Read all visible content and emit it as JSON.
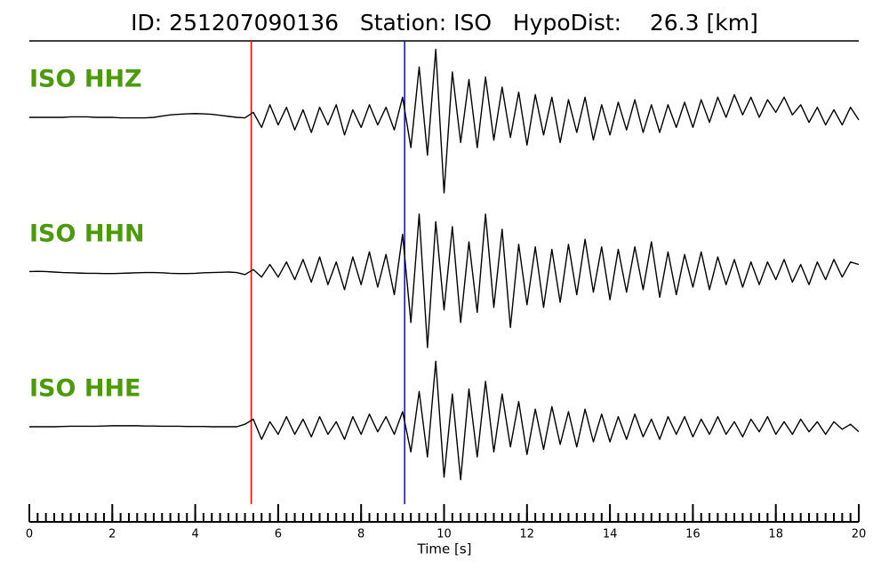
{
  "chart_data": {
    "type": "seismogram",
    "title": "ID: 251207090136   Station: ISO   HypoDist:    26.3 [km]",
    "xlabel": "Time [s]",
    "xlim": [
      0,
      20
    ],
    "xticks": [
      0,
      2,
      4,
      6,
      8,
      10,
      12,
      14,
      16,
      18,
      20
    ],
    "xminor": 0.2,
    "ylim": [
      -3,
      3
    ],
    "label_color": "#4a9a0a",
    "picks": [
      {
        "x": 5.35,
        "color": "#ff0000"
      },
      {
        "x": 9.05,
        "color": "#0000ff"
      }
    ],
    "x": [
      0,
      0.2,
      0.4,
      0.6,
      0.8,
      1,
      1.2,
      1.4,
      1.6,
      1.8,
      2,
      2.2,
      2.4,
      2.6,
      2.8,
      3,
      3.2,
      3.4,
      3.6,
      3.8,
      4,
      4.2,
      4.4,
      4.6,
      4.8,
      5,
      5.2,
      5.4,
      5.6,
      5.8,
      6,
      6.2,
      6.4,
      6.6,
      6.8,
      7,
      7.2,
      7.4,
      7.6,
      7.8,
      8,
      8.2,
      8.4,
      8.6,
      8.8,
      9,
      9.2,
      9.4,
      9.6,
      9.8,
      10,
      10.2,
      10.4,
      10.6,
      10.8,
      11,
      11.2,
      11.4,
      11.6,
      11.8,
      12,
      12.2,
      12.4,
      12.6,
      12.8,
      13,
      13.2,
      13.4,
      13.6,
      13.8,
      14,
      14.2,
      14.4,
      14.6,
      14.8,
      15,
      15.2,
      15.4,
      15.6,
      15.8,
      16,
      16.2,
      16.4,
      16.6,
      16.8,
      17,
      17.2,
      17.4,
      17.6,
      17.8,
      18,
      18.2,
      18.4,
      18.6,
      18.8,
      19,
      19.2,
      19.4,
      19.6,
      19.8,
      20
    ],
    "series": [
      {
        "name": "ISO HHZ",
        "color": "#000000",
        "values": [
          0,
          0,
          0,
          0,
          0,
          0.02,
          0.02,
          0.02,
          0,
          0,
          0,
          -0.02,
          -0.02,
          -0.02,
          -0.02,
          0,
          0.05,
          0.1,
          0.12,
          0.14,
          0.15,
          0.14,
          0.12,
          0.08,
          0.04,
          0,
          -0.02,
          0.2,
          -0.4,
          0.5,
          -0.3,
          0.4,
          -0.5,
          0.3,
          -0.6,
          0.4,
          -0.3,
          0.5,
          -0.7,
          0.3,
          -0.4,
          0.5,
          -0.3,
          0.4,
          -0.5,
          0.8,
          -1.2,
          2.0,
          -1.5,
          2.7,
          -3.0,
          1.8,
          -1.0,
          1.5,
          -1.2,
          1.6,
          -0.9,
          1.2,
          -0.8,
          1.0,
          -1.1,
          0.9,
          -0.7,
          0.8,
          -1.0,
          0.7,
          -0.6,
          0.8,
          -0.9,
          0.5,
          -0.7,
          0.6,
          -0.5,
          0.7,
          -0.6,
          0.5,
          -0.6,
          0.5,
          -0.4,
          0.6,
          -0.4,
          0.7,
          -0.2,
          0.8,
          0,
          0.9,
          0.1,
          0.8,
          0,
          0.7,
          0.2,
          0.8,
          0.1,
          0.5,
          -0.2,
          0.4,
          -0.3,
          0.3,
          -0.3,
          0.4,
          -0.1
        ]
      },
      {
        "name": "ISO HHN",
        "color": "#000000",
        "values": [
          0.02,
          0.03,
          0.02,
          0,
          -0.02,
          -0.03,
          -0.04,
          -0.05,
          -0.05,
          -0.06,
          -0.06,
          -0.05,
          -0.04,
          -0.03,
          -0.02,
          -0.02,
          -0.03,
          -0.05,
          -0.06,
          -0.06,
          -0.05,
          -0.03,
          -0.02,
          -0.01,
          0,
          -0.02,
          -0.1,
          0.1,
          -0.2,
          0.3,
          -0.2,
          0.4,
          -0.3,
          0.5,
          -0.4,
          0.6,
          -0.5,
          0.4,
          -0.7,
          0.6,
          -0.5,
          0.8,
          -0.6,
          0.7,
          -0.9,
          1.5,
          -2.0,
          2.3,
          -3.0,
          2.0,
          -1.5,
          1.8,
          -2.0,
          1.2,
          -1.6,
          2.3,
          -1.4,
          1.7,
          -2.2,
          1.1,
          -1.3,
          1.0,
          -1.4,
          0.9,
          -1.2,
          1.1,
          -0.9,
          1.3,
          -0.8,
          1.0,
          -1.1,
          0.9,
          -0.8,
          1.0,
          -0.7,
          1.2,
          -1.0,
          0.8,
          -0.9,
          0.7,
          -0.6,
          0.8,
          -0.7,
          0.6,
          -0.5,
          0.5,
          -0.6,
          0.4,
          -0.5,
          0.4,
          -0.3,
          0.5,
          -0.4,
          0.3,
          -0.5,
          0.4,
          -0.3,
          0.5,
          -0.2,
          0.4,
          0.3
        ]
      },
      {
        "name": "ISO HHE",
        "color": "#000000",
        "values": [
          0,
          0,
          0,
          0,
          0.01,
          0.02,
          0.02,
          0.02,
          0.02,
          0.03,
          0.04,
          0.04,
          0.04,
          0.04,
          0.03,
          0.03,
          0.02,
          0.02,
          0.02,
          0.01,
          0.01,
          0.01,
          0,
          0,
          0,
          0,
          0.1,
          0.3,
          -0.5,
          0.2,
          -0.3,
          0.4,
          -0.3,
          0.3,
          -0.4,
          0.4,
          -0.3,
          0.2,
          -0.5,
          0.4,
          -0.3,
          0.5,
          -0.2,
          0.4,
          -0.3,
          0.6,
          -1.0,
          1.4,
          -1.2,
          2.6,
          -2.0,
          1.3,
          -2.1,
          1.5,
          -1.2,
          1.8,
          -1.0,
          1.3,
          -0.8,
          1.0,
          -1.1,
          0.7,
          -0.9,
          0.8,
          -0.7,
          0.6,
          -0.8,
          0.7,
          -0.6,
          0.5,
          -0.6,
          0.4,
          -0.5,
          0.5,
          -0.4,
          0.3,
          -0.5,
          0.4,
          -0.3,
          0.4,
          -0.4,
          0.3,
          -0.3,
          0.4,
          -0.3,
          0.2,
          -0.4,
          0.3,
          -0.2,
          0.4,
          -0.3,
          0.2,
          -0.3,
          0.3,
          -0.2,
          0.2,
          -0.3,
          0.2,
          -0.1,
          0.1,
          -0.2
        ]
      }
    ]
  }
}
